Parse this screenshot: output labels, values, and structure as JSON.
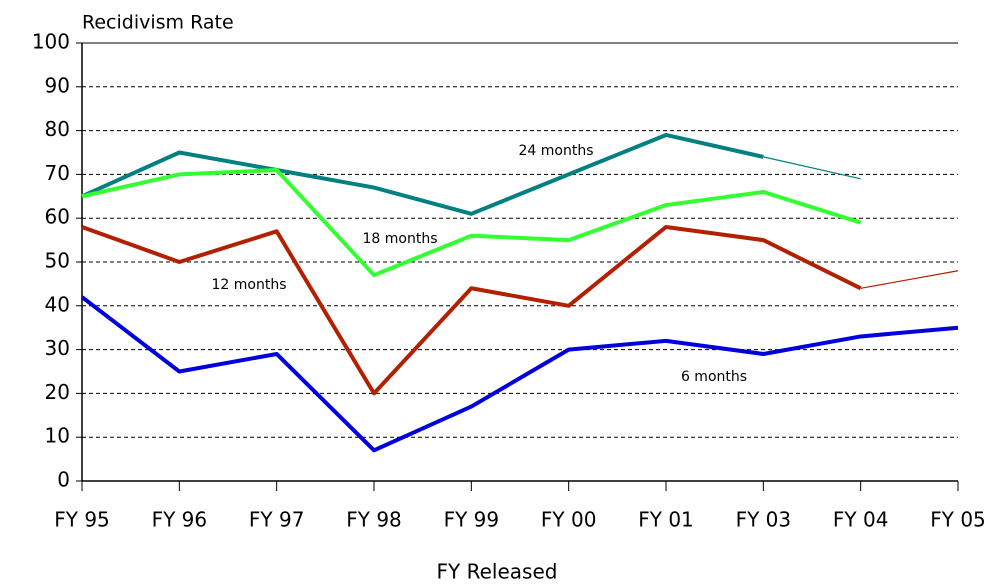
{
  "chart_data": {
    "type": "line",
    "title": "Recidivism Rate",
    "x_label": "FY Released",
    "categories": [
      "FY 95",
      "FY 96",
      "FY 97",
      "FY 98",
      "FY 99",
      "FY 00",
      "FY 01",
      "FY 03",
      "FY 04",
      "FY 05"
    ],
    "series": [
      {
        "name": "24 months",
        "color": "#008080",
        "values": [
          65,
          75,
          71,
          67,
          61,
          70,
          79,
          74,
          null,
          null
        ],
        "projected_values": [
          null,
          null,
          null,
          null,
          null,
          null,
          null,
          74,
          69,
          null
        ]
      },
      {
        "name": "18 months",
        "color": "#33ff33",
        "values": [
          65,
          70,
          71,
          47,
          56,
          55,
          63,
          66,
          59,
          null
        ]
      },
      {
        "name": "12 months",
        "color": "#b22000",
        "values": [
          58,
          50,
          57,
          20,
          44,
          40,
          58,
          55,
          44,
          null
        ],
        "projected_values": [
          null,
          null,
          null,
          null,
          null,
          null,
          null,
          null,
          44,
          48
        ]
      },
      {
        "name": "6 months",
        "color": "#0000dd",
        "values": [
          42,
          25,
          29,
          7,
          17,
          30,
          32,
          29,
          33,
          35
        ]
      }
    ],
    "ylim": [
      0,
      100
    ],
    "yticks": [
      0,
      10,
      20,
      30,
      40,
      50,
      60,
      70,
      80,
      90,
      100
    ],
    "grid": true
  }
}
